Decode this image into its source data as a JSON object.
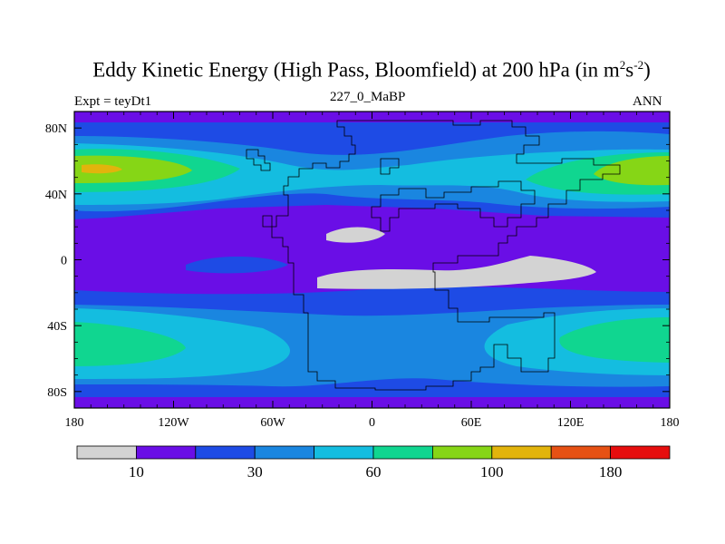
{
  "chart_data": {
    "type": "heatmap",
    "title": "Eddy Kinetic Energy (High Pass, Bloomfield) at 200 hPa (in m",
    "title_sup1": "2",
    "title_mid": "s",
    "title_sup2": "-2",
    "title_end": ")",
    "left_label": "Expt = teyDt1",
    "center_label": "227_0_MaBP",
    "right_label": "ANN",
    "x_range": [
      -180,
      180
    ],
    "y_range": [
      -90,
      90
    ],
    "x_tick_labels": [
      "180",
      "120W",
      "60W",
      "0",
      "60E",
      "120E",
      "180"
    ],
    "x_tick_values": [
      -180,
      -120,
      -60,
      0,
      60,
      120,
      180
    ],
    "y_tick_labels": [
      "80N",
      "40N",
      "0",
      "40S",
      "80S"
    ],
    "y_tick_values": [
      80,
      40,
      0,
      -40,
      -80
    ],
    "colorbar_labels": [
      {
        "text": "10",
        "boundary": 1
      },
      {
        "text": "30",
        "boundary": 3
      },
      {
        "text": "60",
        "boundary": 5
      },
      {
        "text": "100",
        "boundary": 7
      },
      {
        "text": "180",
        "boundary": 9
      }
    ],
    "levels": [
      5,
      10,
      20,
      30,
      45,
      60,
      80,
      100,
      140,
      180
    ],
    "colors": [
      "#d3d3d3",
      "#6a0ee6",
      "#1e4be5",
      "#1a86e0",
      "#14bde0",
      "#10d690",
      "#86d616",
      "#e2b40c",
      "#e65114",
      "#e60e0e"
    ],
    "ocean_color": "#6a0ee6"
  }
}
